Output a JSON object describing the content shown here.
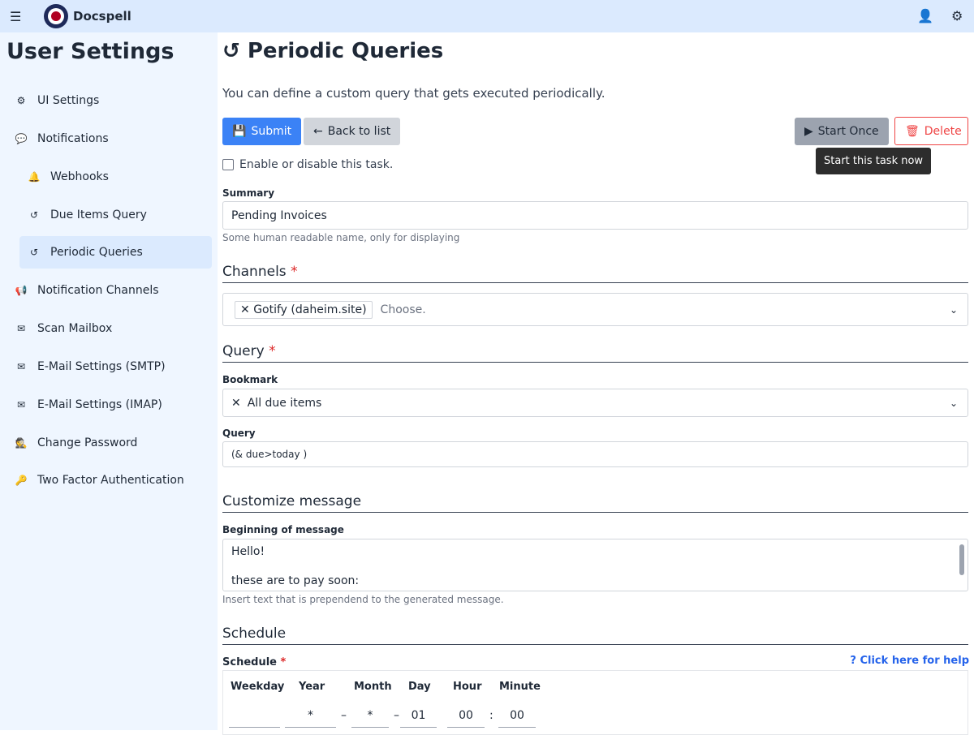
{
  "app": {
    "name": "Docspell"
  },
  "sidebar": {
    "title": "User Settings",
    "items": [
      {
        "label": "UI Settings",
        "icon": "cog-icon"
      },
      {
        "label": "Notifications",
        "icon": "comment-icon"
      },
      {
        "label": "Webhooks",
        "icon": "bell-icon"
      },
      {
        "label": "Due Items Query",
        "icon": "history-icon"
      },
      {
        "label": "Periodic Queries",
        "icon": "history-icon"
      },
      {
        "label": "Notification Channels",
        "icon": "bullhorn-icon"
      },
      {
        "label": "Scan Mailbox",
        "icon": "envelope-open-icon"
      },
      {
        "label": "E-Mail Settings (SMTP)",
        "icon": "envelope-icon"
      },
      {
        "label": "E-Mail Settings (IMAP)",
        "icon": "envelope-icon"
      },
      {
        "label": "Change Password",
        "icon": "user-secret-icon"
      },
      {
        "label": "Two Factor Authentication",
        "icon": "key-icon"
      }
    ]
  },
  "page": {
    "title": "Periodic Queries",
    "description": "You can define a custom query that gets executed periodically.",
    "submit": "Submit",
    "back": "Back to list",
    "start_once": "Start Once",
    "delete": "Delete",
    "tooltip": "Start this task now",
    "enable_label": "Enable or disable this task.",
    "enabled": false,
    "summary_label": "Summary",
    "summary_value": "Pending Invoices",
    "summary_hint": "Some human readable name, only for displaying",
    "channels_title": "Channels",
    "channel_tag": "Gotify (daheim.site)",
    "channel_placeholder": "Choose.",
    "query_title": "Query",
    "bookmark_label": "Bookmark",
    "bookmark_value": "All due items",
    "query_label": "Query",
    "query_value": "(& due>today )",
    "customize_title": "Customize message",
    "begin_label": "Beginning of message",
    "begin_line1": "Hello!",
    "begin_line2": "these are to pay soon:",
    "begin_hint": "Insert text that is prependend to the generated message.",
    "schedule_title": "Schedule",
    "schedule_label": "Schedule",
    "help_link": "Click here for help",
    "schedule": {
      "headers": [
        "Weekday",
        "Year",
        "Month",
        "Day",
        "Hour",
        "Minute"
      ],
      "values": [
        "",
        "*",
        "*",
        "01",
        "00",
        "00"
      ]
    }
  },
  "colors": {
    "primary": "#3b82f6",
    "danger": "#ef4444",
    "secondary": "#9ca3af"
  }
}
